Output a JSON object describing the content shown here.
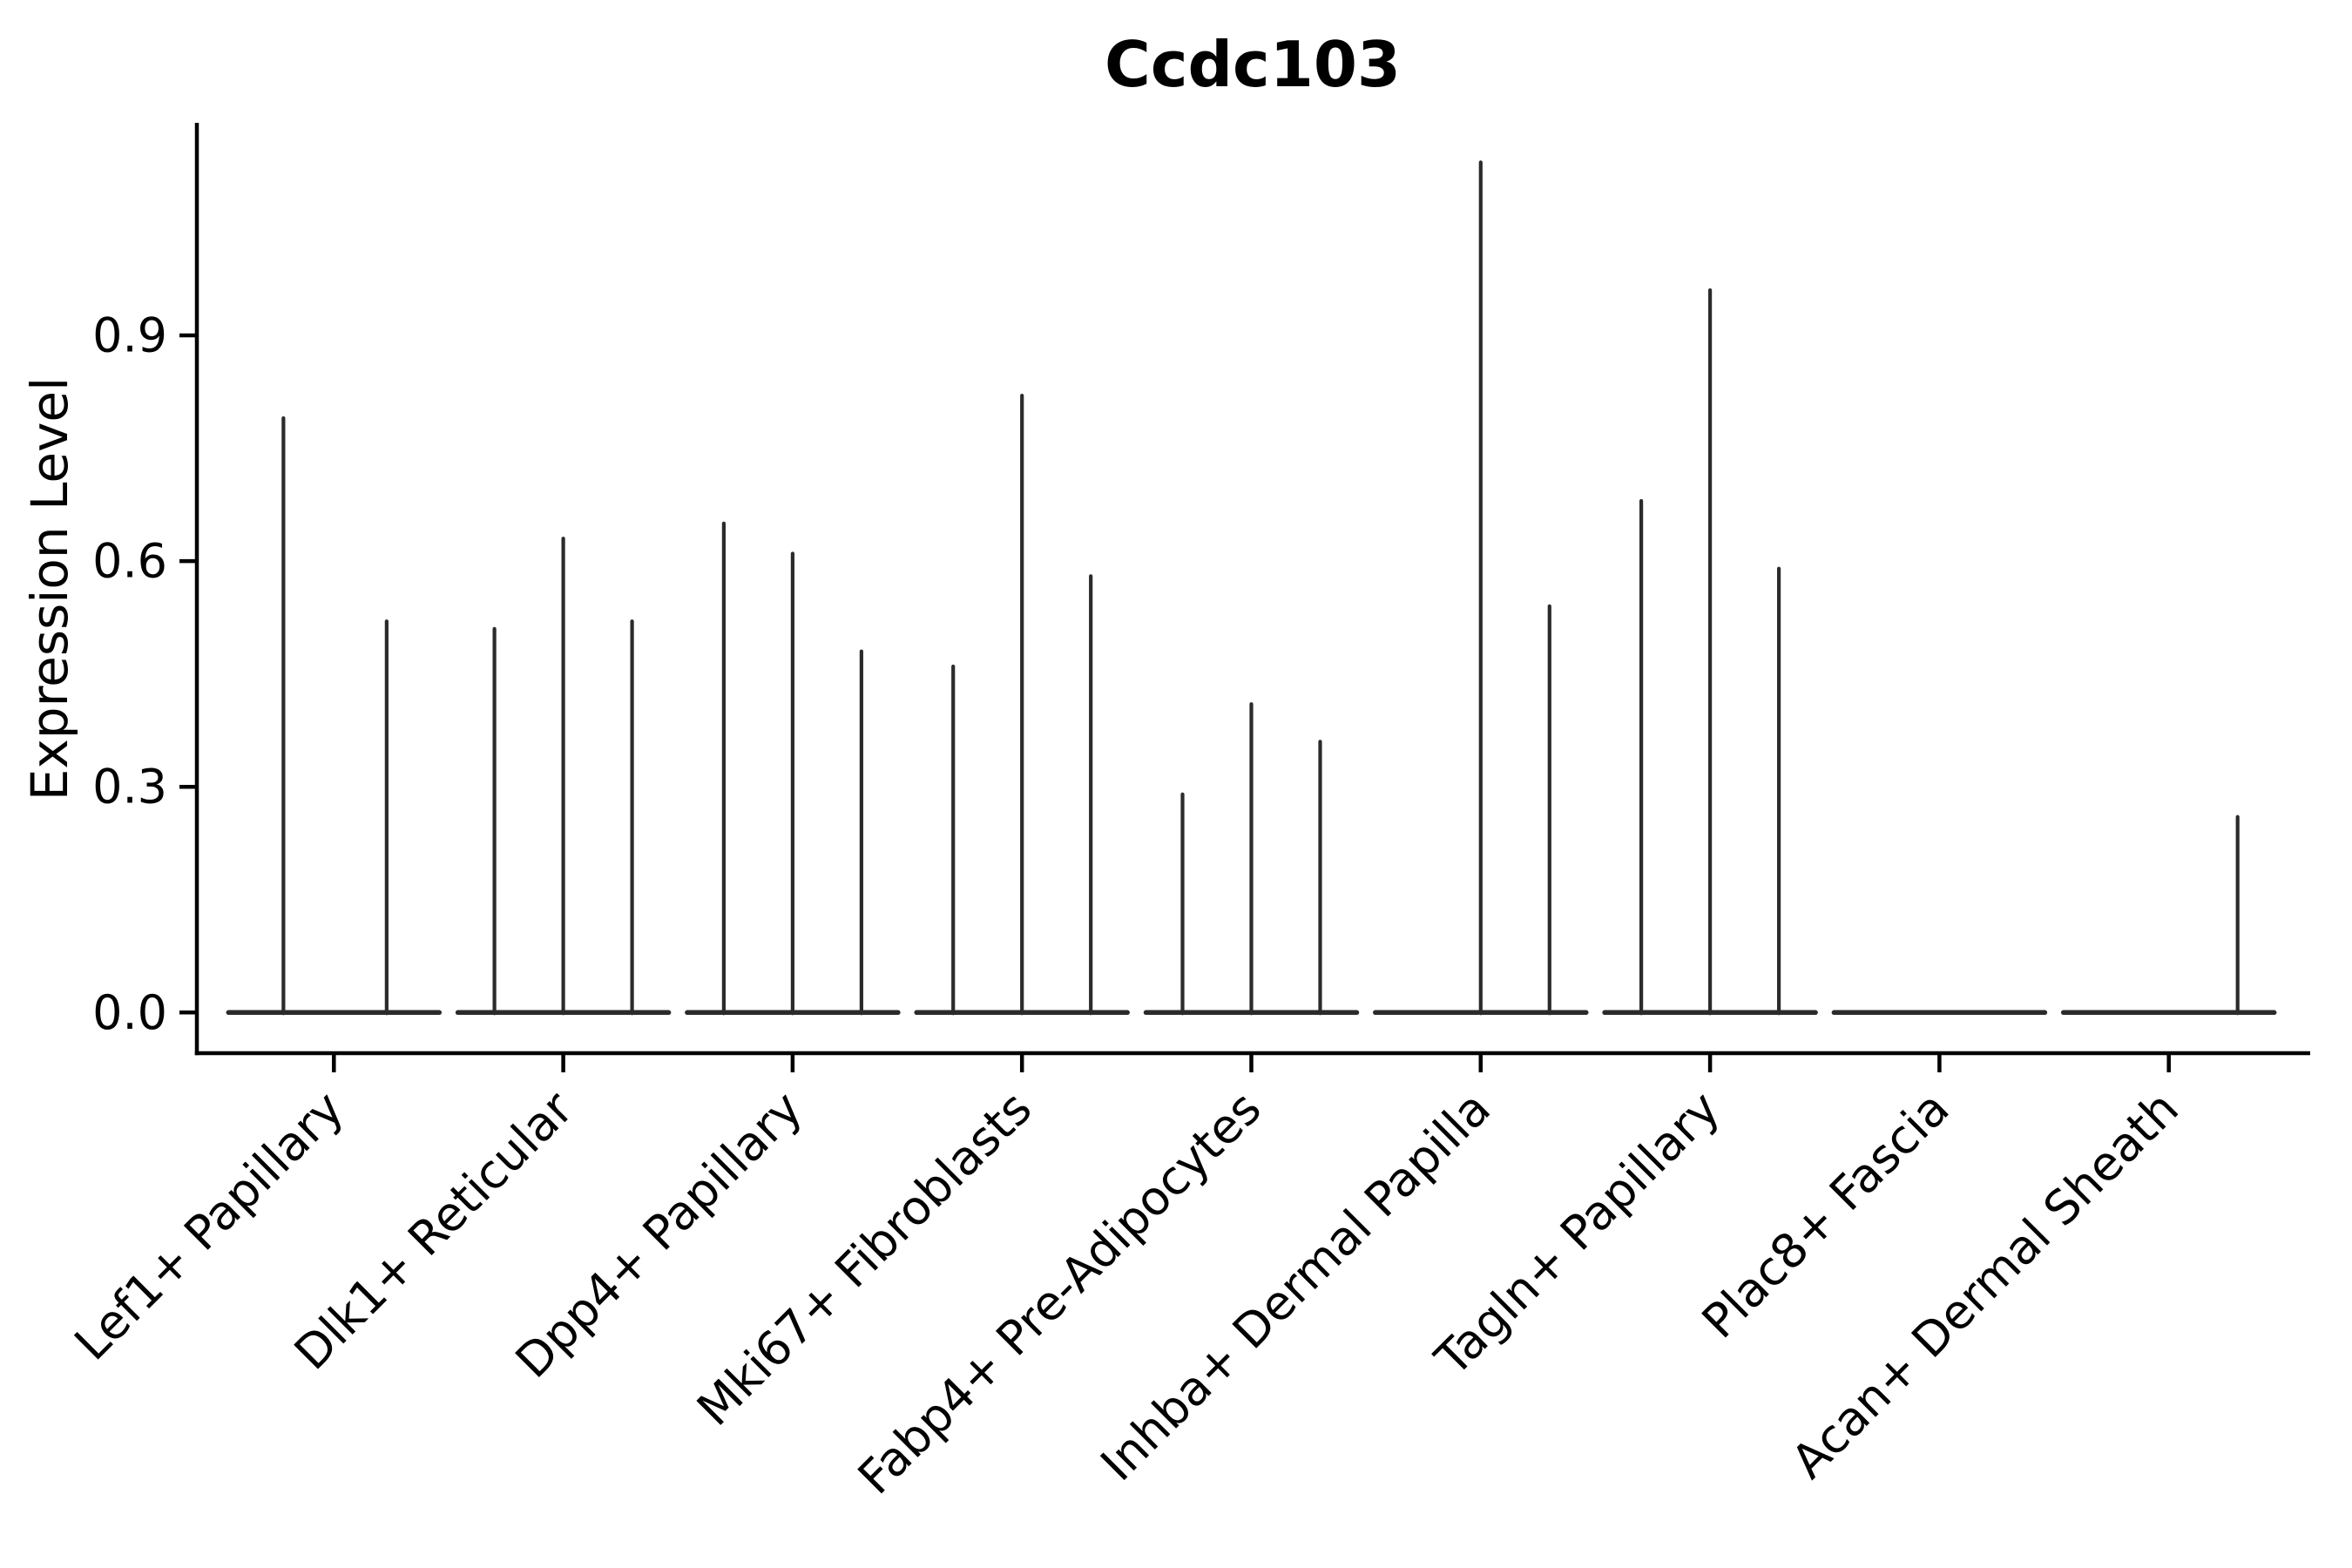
{
  "chart_data": {
    "type": "violin",
    "title": "Ccdc103",
    "ylabel": "Expression Level",
    "xlabel": "",
    "grid": false,
    "legend": null,
    "ylim": [
      -0.05,
      1.18
    ],
    "ytick_labels": [
      "0.0",
      "0.3",
      "0.6",
      "0.9"
    ],
    "ytick_values": [
      0.0,
      0.3,
      0.6,
      0.9
    ],
    "x_tick_rotation": 45,
    "categories": [
      "Lef1+ Papillary",
      "Dlk1+ Reticular",
      "Dpp4+ Papillary",
      "Mki67+ Fibroblasts",
      "Fabp4+ Pre-Adipocytes",
      "Inhba+ Dermal Papilla",
      "Tagln+ Papillary",
      "Plac8+ Fascia",
      "Acan+ Dermal Sheath"
    ],
    "groups": [
      {
        "category": "Lef1+ Papillary",
        "violins": [
          {
            "offset": -0.22,
            "max": 0.79
          },
          {
            "offset": 0.23,
            "max": 0.52
          }
        ]
      },
      {
        "category": "Dlk1+ Reticular",
        "violins": [
          {
            "offset": -0.3,
            "max": 0.51
          },
          {
            "offset": 0.0,
            "max": 0.63
          },
          {
            "offset": 0.3,
            "max": 0.52
          }
        ]
      },
      {
        "category": "Dpp4+ Papillary",
        "violins": [
          {
            "offset": -0.3,
            "max": 0.65
          },
          {
            "offset": 0.0,
            "max": 0.61
          },
          {
            "offset": 0.3,
            "max": 0.48
          }
        ]
      },
      {
        "category": "Mki67+ Fibroblasts",
        "violins": [
          {
            "offset": -0.3,
            "max": 0.46
          },
          {
            "offset": 0.0,
            "max": 0.82
          },
          {
            "offset": 0.3,
            "max": 0.58
          }
        ]
      },
      {
        "category": "Fabp4+ Pre-Adipocytes",
        "violins": [
          {
            "offset": -0.3,
            "max": 0.29
          },
          {
            "offset": 0.0,
            "max": 0.41
          },
          {
            "offset": 0.3,
            "max": 0.36
          }
        ]
      },
      {
        "category": "Inhba+ Dermal Papilla",
        "violins": [
          {
            "offset": -0.3,
            "max": 0.0
          },
          {
            "offset": 0.0,
            "max": 1.13
          },
          {
            "offset": 0.3,
            "max": 0.54
          }
        ]
      },
      {
        "category": "Tagln+ Papillary",
        "violins": [
          {
            "offset": -0.3,
            "max": 0.68
          },
          {
            "offset": 0.0,
            "max": 0.96
          },
          {
            "offset": 0.3,
            "max": 0.59
          }
        ]
      },
      {
        "category": "Plac8+ Fascia",
        "violins": [
          {
            "offset": -0.3,
            "max": 0.0
          },
          {
            "offset": 0.0,
            "max": 0.0
          },
          {
            "offset": 0.3,
            "max": 0.0
          }
        ]
      },
      {
        "category": "Acan+ Dermal Sheath",
        "violins": [
          {
            "offset": -0.3,
            "max": 0.0
          },
          {
            "offset": 0.0,
            "max": 0.0
          },
          {
            "offset": 0.3,
            "max": 0.26
          }
        ]
      }
    ],
    "colors": {
      "violin": "#2b2b2b",
      "axis": "#000000",
      "text": "#000000",
      "background": "#ffffff"
    }
  }
}
